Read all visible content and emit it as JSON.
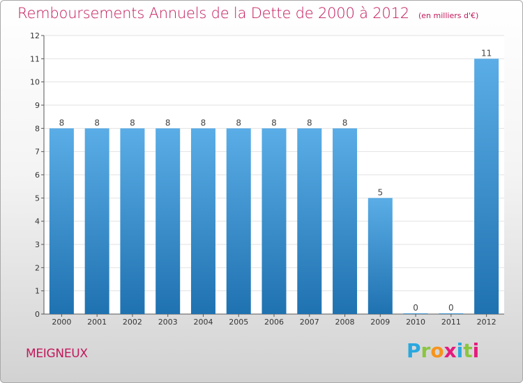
{
  "header": {
    "title": "Remboursements Annuels de la Dette de 2000 à 2012",
    "subtitle": "(en milliers d'€)"
  },
  "footer": {
    "commune": "MEIGNEUX",
    "logo_text": "Proxiti"
  },
  "colors": {
    "title": "#c2185b",
    "bar_top": "#5aade6",
    "bar_bottom": "#1f72b0",
    "grid": "#e2e2e2",
    "axis": "#555555"
  },
  "chart_data": {
    "type": "bar",
    "title": "Remboursements Annuels de la Dette de 2000 à 2012",
    "subtitle": "(en milliers d'€)",
    "categories": [
      "2000",
      "2001",
      "2002",
      "2003",
      "2004",
      "2005",
      "2006",
      "2007",
      "2008",
      "2009",
      "2010",
      "2011",
      "2012"
    ],
    "values": [
      8,
      8,
      8,
      8,
      8,
      8,
      8,
      8,
      8,
      5,
      0,
      0,
      11
    ],
    "data_labels": [
      "8",
      "8",
      "8",
      "8",
      "8",
      "8",
      "8",
      "8",
      "8",
      "5",
      "0",
      "0",
      "11"
    ],
    "y_ticks": [
      "0",
      "1",
      "2",
      "3",
      "4",
      "5",
      "6",
      "7",
      "8",
      "9",
      "10",
      "11",
      "12"
    ],
    "ylim": [
      0,
      12
    ],
    "xlabel": "",
    "ylabel": "",
    "grid": true,
    "legend": "none"
  }
}
